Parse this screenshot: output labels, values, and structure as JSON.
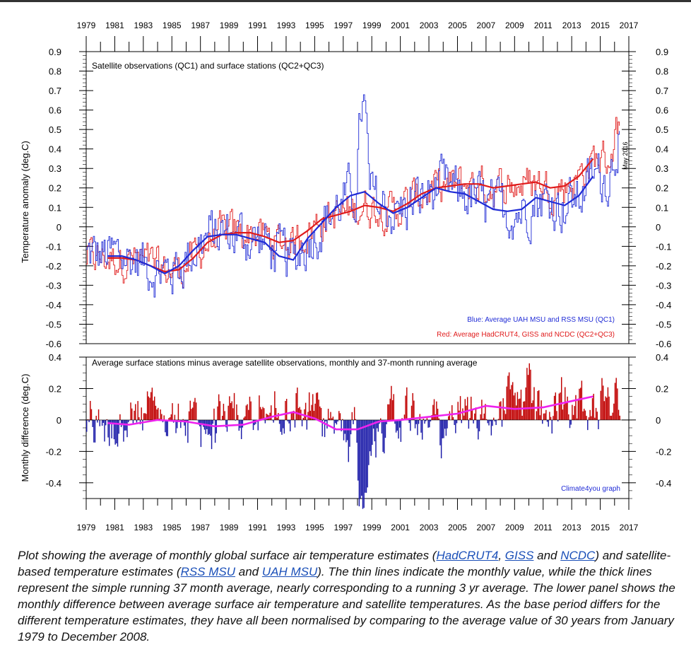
{
  "chart_data": [
    {
      "type": "line",
      "title": "Satellite observations (QC1) and surface stations (QC2+QC3)",
      "ylabel": "Temperature anomaly (deg.C)",
      "xlim": [
        1979,
        2017
      ],
      "ylim": [
        -0.6,
        0.9
      ],
      "x_ticks": [
        "1979",
        "1981",
        "1983",
        "1985",
        "1987",
        "1989",
        "1991",
        "1993",
        "1995",
        "1997",
        "1999",
        "2001",
        "2003",
        "2005",
        "2007",
        "2009",
        "2011",
        "2013",
        "2015",
        "2017"
      ],
      "y_ticks": [
        "0.9",
        "0.8",
        "0.7",
        "0.6",
        "0.5",
        "0.4",
        "0.3",
        "0.2",
        "0.1",
        "0",
        "-0.1",
        "-0.2",
        "-0.3",
        "-0.4",
        "-0.5",
        "-0.6"
      ],
      "annotation": "May 2016",
      "legend_position": "bottom-right",
      "grid": false,
      "series": [
        {
          "name": "Blue: Average UAH MSU and RSS MSU (QC1)",
          "color": "#1f2bd6",
          "style": "37-month running average",
          "x": [
            1980.5,
            1981.5,
            1982.5,
            1983.5,
            1984.5,
            1985.5,
            1986.5,
            1987.5,
            1988.5,
            1989.5,
            1990.5,
            1991.5,
            1992.5,
            1993.5,
            1994.5,
            1995.5,
            1996.5,
            1997.5,
            1998.5,
            1999.5,
            2000.5,
            2001.5,
            2002.5,
            2003.5,
            2004.5,
            2005.5,
            2006.5,
            2007.5,
            2008.5,
            2009.5,
            2010.5,
            2011.5,
            2012.5,
            2013.5,
            2014.5
          ],
          "y": [
            -0.15,
            -0.15,
            -0.17,
            -0.2,
            -0.24,
            -0.2,
            -0.12,
            -0.05,
            -0.04,
            -0.04,
            -0.06,
            -0.08,
            -0.15,
            -0.17,
            -0.06,
            0.02,
            0.1,
            0.16,
            0.18,
            0.12,
            0.07,
            0.1,
            0.15,
            0.2,
            0.18,
            0.17,
            0.13,
            0.09,
            0.08,
            0.09,
            0.15,
            0.13,
            0.11,
            0.16,
            0.26
          ]
        },
        {
          "name": "Red: Average HadCRUT4, GISS and NCDC (QC2+QC3)",
          "color": "#e01b1b",
          "style": "37-month running average",
          "x": [
            1980.5,
            1981.5,
            1982.5,
            1983.5,
            1984.5,
            1985.5,
            1986.5,
            1987.5,
            1988.5,
            1989.5,
            1990.5,
            1991.5,
            1992.5,
            1993.5,
            1994.5,
            1995.5,
            1996.5,
            1997.5,
            1998.5,
            1999.5,
            2000.5,
            2001.5,
            2002.5,
            2003.5,
            2004.5,
            2005.5,
            2006.5,
            2007.5,
            2008.5,
            2009.5,
            2010.5,
            2011.5,
            2012.5,
            2013.5,
            2014.5
          ],
          "y": [
            -0.16,
            -0.16,
            -0.17,
            -0.2,
            -0.23,
            -0.22,
            -0.16,
            -0.08,
            -0.04,
            -0.03,
            -0.03,
            -0.05,
            -0.08,
            -0.07,
            -0.02,
            0.04,
            0.06,
            0.08,
            0.11,
            0.1,
            0.08,
            0.12,
            0.17,
            0.2,
            0.21,
            0.22,
            0.22,
            0.2,
            0.21,
            0.22,
            0.23,
            0.2,
            0.21,
            0.26,
            0.35
          ]
        }
      ]
    },
    {
      "type": "bar",
      "title": "Average surface stations minus average satellite observations, monthly and 37-month running average",
      "ylabel": "Monthly difference (deg.C)",
      "xlim": [
        1979,
        2017
      ],
      "ylim": [
        -0.5,
        0.4
      ],
      "y_ticks": [
        "0.4",
        "0.2",
        "0",
        "-0.2",
        "-0.4"
      ],
      "source_label": "Climate4you graph",
      "positive_color": "#c00000",
      "negative_color": "#1a1aa8",
      "running_average": {
        "color": "#ee22ee",
        "x": [
          1980.5,
          1982,
          1984,
          1986,
          1988,
          1990,
          1992,
          1993.5,
          1995,
          1996.5,
          1998,
          1999.5,
          2001,
          2003,
          2005,
          2007,
          2009,
          2011,
          2013,
          2014.5
        ],
        "y": [
          -0.02,
          -0.03,
          0.0,
          -0.01,
          -0.04,
          -0.03,
          0.02,
          0.05,
          0.01,
          -0.06,
          -0.06,
          -0.01,
          0.0,
          0.02,
          0.04,
          0.09,
          0.07,
          0.08,
          0.12,
          0.15
        ]
      }
    }
  ],
  "caption": {
    "p1": "Plot showing the average of monthly global surface air temperature estimates (",
    "link1": "HadCRUT4",
    "p2": ", ",
    "link2": "GISS",
    "p3": " and ",
    "link3": "NCDC",
    "p4": ") and satellite-based temperature estimates (",
    "link4": "RSS MSU",
    "p5": " and ",
    "link5": "UAH MSU",
    "p6": "). The thin lines indicate the monthly value, while the thick lines represent the simple running 37 month average, nearly corresponding to a running 3 yr average. The lower panel shows the monthly difference between average surface air temperature and satellite temperatures. As the base period differs for the different temperature estimates, they have all been normalised by comparing to the average value of 30 years from January 1979 to December 2008."
  }
}
